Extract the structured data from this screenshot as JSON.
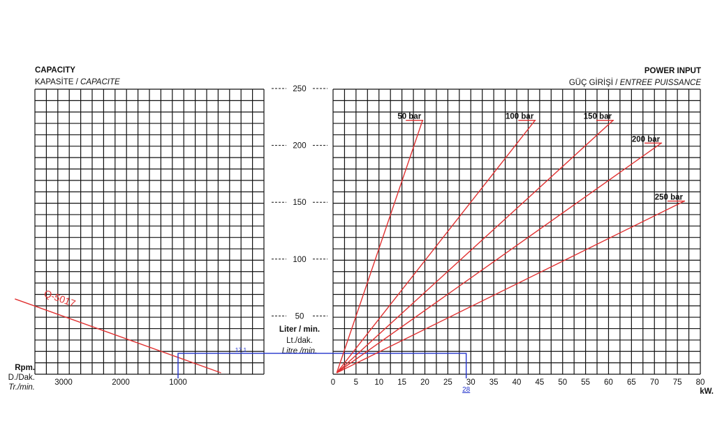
{
  "left_panel": {
    "title": "CAPACITY",
    "subtitle_tr": "KAPASİTE / ",
    "subtitle_fr": "CAPACITE"
  },
  "right_panel": {
    "title": "POWER INPUT",
    "subtitle_tr": "GÜÇ GİRİŞİ / ",
    "subtitle_fr": "ENTREE PUISSANCE"
  },
  "center_axis": {
    "ticks": [
      "250",
      "200",
      "150",
      "100",
      "50"
    ],
    "label_1": "Liter / min.",
    "label_2": "Lt./dak.",
    "label_3": "Litre /min."
  },
  "left_axis": {
    "unit_1": "Rpm.",
    "unit_2": "D./Dak.",
    "unit_3": "Tr./min.",
    "ticks": [
      "3000",
      "2000",
      "1000"
    ]
  },
  "right_axis": {
    "ticks": [
      "0",
      "5",
      "10",
      "15",
      "20",
      "25",
      "30",
      "35",
      "40",
      "45",
      "50",
      "55",
      "60",
      "65",
      "70",
      "75",
      "80"
    ],
    "unit": "kW."
  },
  "colors": {
    "grid": "#111111",
    "curve": "#e03030",
    "reading": "#2233cc"
  },
  "chart_data": [
    {
      "type": "line",
      "title": "CAPACITY",
      "xlabel": "Rpm.",
      "ylabel": "Liter / min.",
      "x_reversed": true,
      "ylim": [
        0,
        250
      ],
      "series": [
        {
          "name": "Q-5017",
          "x": [
            3850,
            250
          ],
          "y": [
            65,
            0
          ]
        }
      ],
      "annotations": [
        {
          "text": "17,1",
          "x": 1000,
          "y": 17.1
        }
      ]
    },
    {
      "type": "line",
      "title": "POWER INPUT",
      "xlabel": "kW.",
      "ylabel": "Liter / min.",
      "xlim": [
        0,
        80
      ],
      "ylim": [
        0,
        250
      ],
      "series": [
        {
          "name": "50 bar",
          "x": [
            0.8,
            19.5
          ],
          "y": [
            0,
            222
          ]
        },
        {
          "name": "100 bar",
          "x": [
            0.8,
            44
          ],
          "y": [
            0,
            222
          ]
        },
        {
          "name": "150 bar",
          "x": [
            0.8,
            61
          ],
          "y": [
            0,
            222
          ]
        },
        {
          "name": "200 bar",
          "x": [
            0.8,
            71.5
          ],
          "y": [
            0,
            202
          ]
        },
        {
          "name": "250 bar",
          "x": [
            0.8,
            76.5
          ],
          "y": [
            0,
            151
          ]
        }
      ],
      "annotations": [
        {
          "text": "28",
          "x": 29,
          "y": 0
        }
      ]
    }
  ]
}
